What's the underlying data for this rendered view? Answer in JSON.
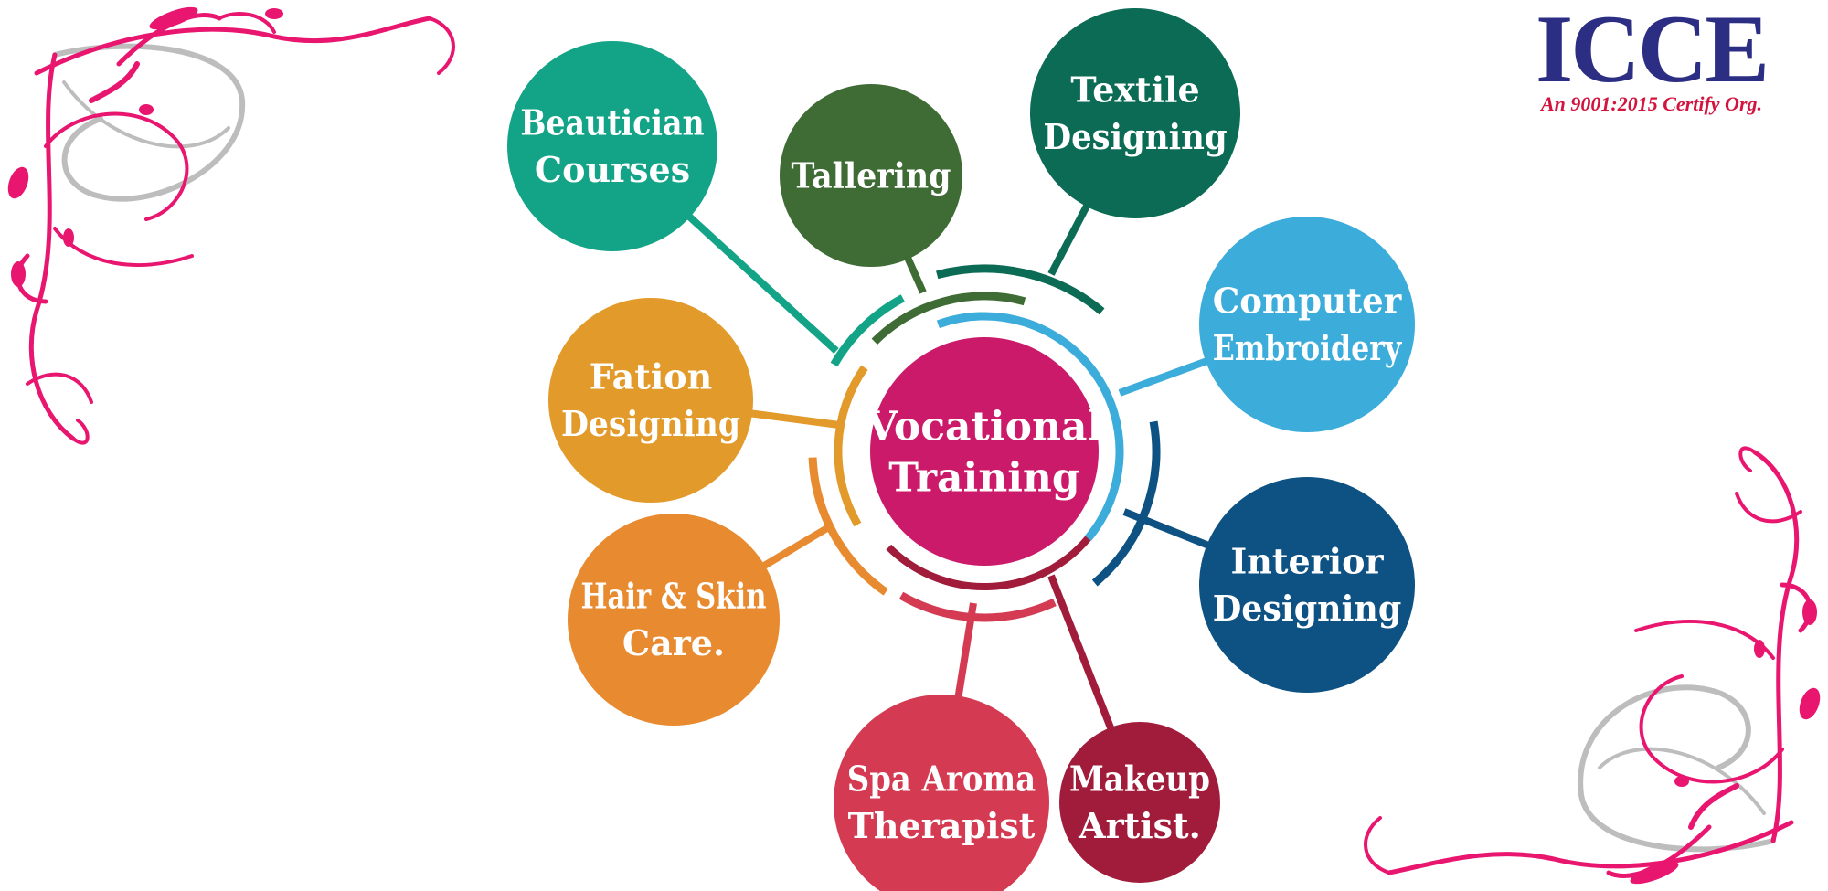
{
  "logo": {
    "title": "ICCE",
    "subtitle": "An 9001:2015 Certify Org.",
    "title_color": "#2b2e83",
    "subtitle_color": "#d2143e"
  },
  "center": {
    "lines": [
      "Vocational",
      "Training"
    ],
    "color": "#cc1a6a"
  },
  "nodes": [
    {
      "id": "beautician",
      "lines": [
        "Beautician",
        "Courses"
      ],
      "color": "#13a487"
    },
    {
      "id": "tallering",
      "lines": [
        "Tallering"
      ],
      "color": "#3f6b35"
    },
    {
      "id": "textile",
      "lines": [
        "Textile",
        "Designing"
      ],
      "color": "#0b6b55"
    },
    {
      "id": "computer",
      "lines": [
        "Computer",
        "Embroidery"
      ],
      "color": "#3cacdb"
    },
    {
      "id": "interior",
      "lines": [
        "Interior",
        "Designing"
      ],
      "color": "#0e5283"
    },
    {
      "id": "makeup",
      "lines": [
        "Makeup",
        "Artist."
      ],
      "color": "#a01c3a"
    },
    {
      "id": "spa",
      "lines": [
        "Spa Aroma",
        "Therapist"
      ],
      "color": "#d43b52"
    },
    {
      "id": "hair",
      "lines": [
        "Hair & Skin",
        "Care."
      ],
      "color": "#e88a2f"
    },
    {
      "id": "fation",
      "lines": [
        "Fation",
        "Designing"
      ],
      "color": "#e29a2a"
    }
  ],
  "decor": {
    "swirl_color": "#e8166f",
    "swirl_secondary": "#bdbdbd"
  }
}
